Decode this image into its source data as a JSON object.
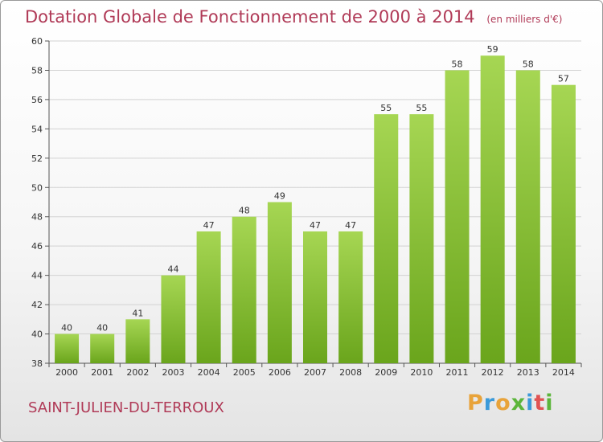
{
  "title": "Dotation Globale de Fonctionnement de 2000 à 2014",
  "unit_note": "(en milliers d'€)",
  "commune": "SAINT-JULIEN-DU-TERROUX",
  "logo": {
    "letters": [
      "P",
      "r",
      "o",
      "x",
      "i",
      "t",
      "i"
    ],
    "colors": [
      "#e8a33a",
      "#3b9ad9",
      "#e8a33a",
      "#5bb53a",
      "#3b9ad9",
      "#e05353",
      "#5bb53a"
    ]
  },
  "colors": {
    "bar_light": "#a6d653",
    "bar_dark": "#6aa51c",
    "title": "#b03a57"
  },
  "chart_data": {
    "type": "bar",
    "title": "Dotation Globale de Fonctionnement de 2000 à 2014",
    "ylabel": "",
    "xlabel": "",
    "categories": [
      "2000",
      "2001",
      "2002",
      "2003",
      "2004",
      "2005",
      "2006",
      "2007",
      "2008",
      "2009",
      "2010",
      "2011",
      "2012",
      "2013",
      "2014"
    ],
    "values": [
      40,
      40,
      41,
      44,
      47,
      48,
      49,
      47,
      47,
      55,
      55,
      58,
      59,
      58,
      57
    ],
    "ylim": [
      38,
      60
    ],
    "yticks": [
      38,
      40,
      42,
      44,
      46,
      48,
      50,
      52,
      54,
      56,
      58,
      60
    ],
    "grid": true
  }
}
